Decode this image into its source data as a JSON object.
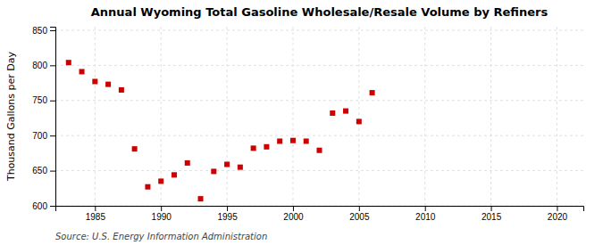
{
  "chart_data": {
    "type": "scatter",
    "title": "Annual Wyoming Total Gasoline Wholesale/Resale Volume by Refiners",
    "ylabel": "Thousand Gallons per Day",
    "source": "Source: U.S. Energy Information Administration",
    "x": [
      1983,
      1984,
      1985,
      1986,
      1987,
      1988,
      1989,
      1990,
      1991,
      1992,
      1993,
      1994,
      1995,
      1996,
      1997,
      1998,
      1999,
      2000,
      2001,
      2002,
      2003,
      2004,
      2005,
      2006
    ],
    "values": [
      804,
      791,
      777,
      773,
      765,
      681,
      627,
      635,
      644,
      661,
      610,
      649,
      659,
      655,
      682,
      684,
      692,
      693,
      692,
      679,
      732,
      735,
      720,
      761
    ],
    "xlim": [
      1982,
      2022
    ],
    "ylim": [
      600,
      855
    ],
    "xticks": [
      1985,
      1990,
      1995,
      2000,
      2005,
      2010,
      2015,
      2020
    ],
    "yticks": [
      600,
      650,
      700,
      750,
      800,
      850
    ],
    "color": "#cc0000",
    "marker": "square",
    "grid": true
  }
}
